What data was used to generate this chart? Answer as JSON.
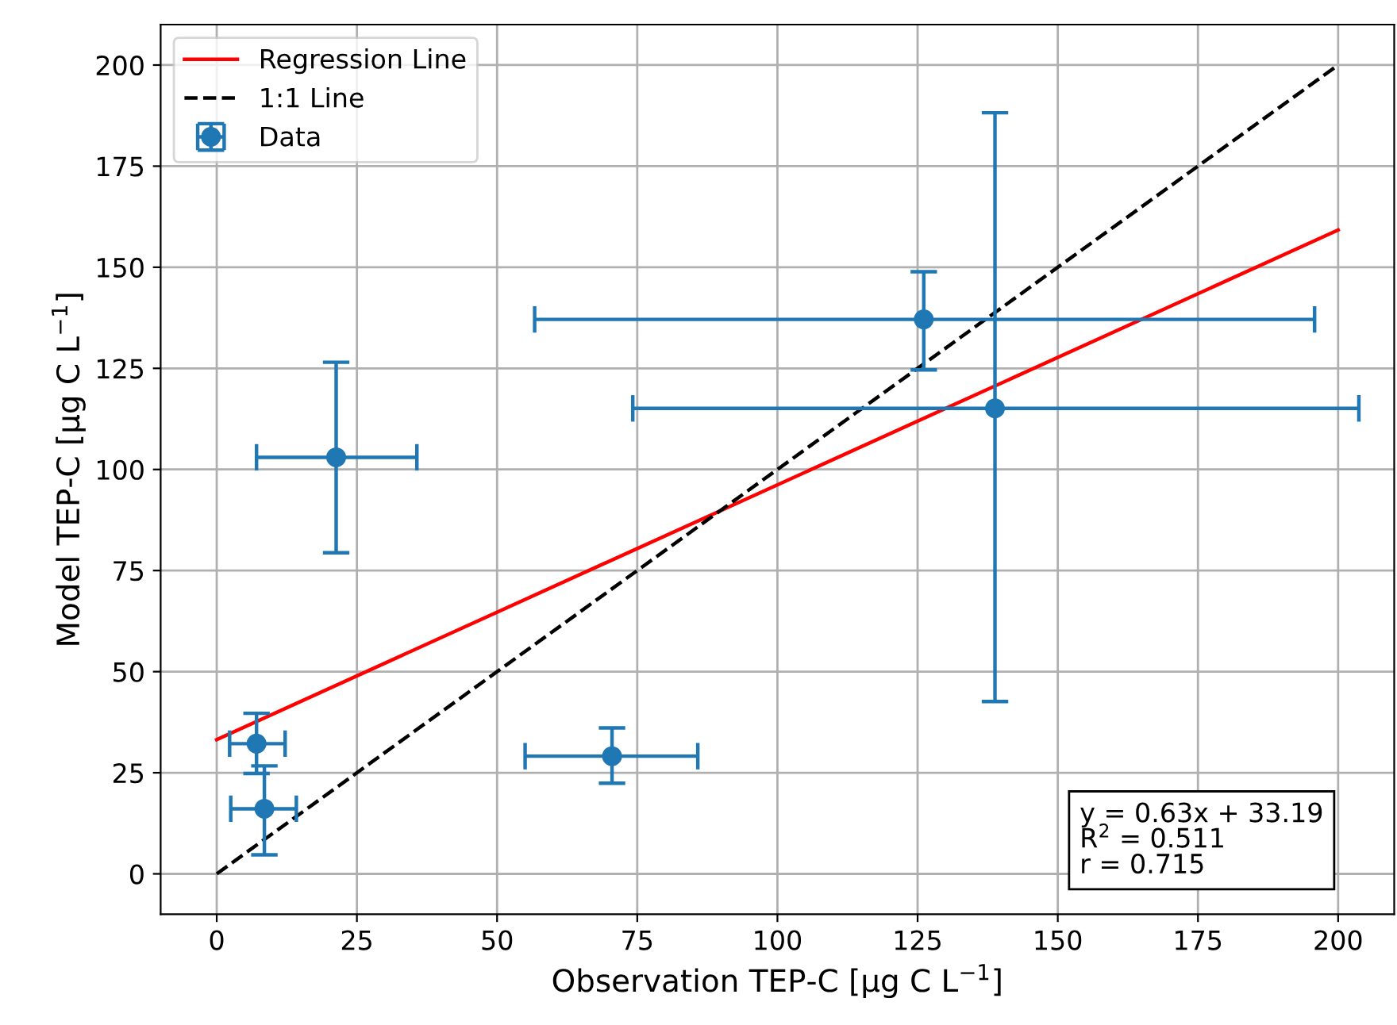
{
  "chart_data": {
    "type": "scatter",
    "xlabel": "Observation TEP-C [μg C L$^{−1}$]",
    "ylabel": "Model TEP-C [μg C L$^{−1}$]",
    "xlim": [
      -10,
      210
    ],
    "ylim": [
      -10,
      210
    ],
    "xticks": [
      0,
      25,
      50,
      75,
      100,
      125,
      150,
      175,
      200
    ],
    "yticks": [
      0,
      25,
      50,
      75,
      100,
      125,
      150,
      175,
      200
    ],
    "grid": true,
    "legend": "top left",
    "series": [
      {
        "name": "Regression Line",
        "type": "line",
        "color": "#ff0000",
        "line_style": "solid",
        "x": [
          0,
          200
        ],
        "values": [
          33.2,
          159.2
        ]
      },
      {
        "name": "1:1 Line",
        "type": "line",
        "color": "#000000",
        "line_style": "dashed",
        "x": [
          0,
          200
        ],
        "values": [
          0,
          200
        ]
      },
      {
        "name": "Data",
        "marker": "circle",
        "color": "#1f77b4",
        "x": [
          21.3,
          7.1,
          8.5,
          70.5,
          126.1,
          138.8
        ],
        "values": [
          103,
          32.2,
          16.1,
          29.1,
          137.1,
          115.1
        ],
        "errors": [
          [
            79.4,
            126.5
          ],
          [
            24.8,
            39.7
          ],
          [
            4.7,
            26.7
          ],
          [
            22.4,
            36.1
          ],
          [
            124.6,
            148.9
          ],
          [
            42.6,
            188.2
          ]
        ],
        "xerrors": [
          [
            7.1,
            35.7
          ],
          [
            2.3,
            12.2
          ],
          [
            2.5,
            14.2
          ],
          [
            55,
            85.8
          ],
          [
            56.7,
            195.8
          ],
          [
            74.2,
            203.7
          ]
        ]
      }
    ],
    "annotations": [
      "y = 0.63x + 33.19\nR$^{2}$ = 0.511\nr = 0.715"
    ]
  }
}
